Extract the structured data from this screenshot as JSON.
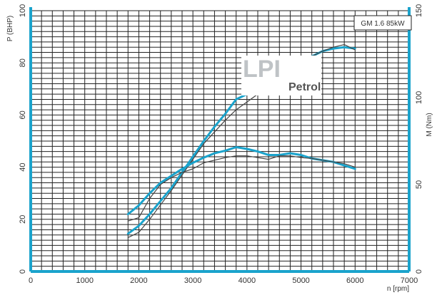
{
  "chart_data": {
    "type": "line",
    "label_box": "GM 1.6 85kW",
    "logo": {
      "mark": "LPI",
      "subtitle": "Petrol"
    },
    "xlabel": "n [rpm]",
    "ylabel_left": "P (BHP)",
    "ylabel_right": "M (Nm)",
    "xlim": [
      0,
      7000
    ],
    "ylim_left": [
      0,
      100
    ],
    "ylim_right": [
      0,
      150
    ],
    "x_ticks": [
      "0",
      "1000",
      "2000",
      "3000",
      "4000",
      "5000",
      "6000",
      "7000"
    ],
    "y_left_ticks": [
      "0",
      "20",
      "40",
      "60",
      "80",
      "100"
    ],
    "y_right_ticks": [
      "0",
      "50",
      "100",
      "150"
    ],
    "grid": true,
    "colors": {
      "grid": "#222222",
      "lpi": "#1aa3cc",
      "petrol": "#444444",
      "axis": "#1aa3cc"
    },
    "series": [
      {
        "name": "LPI",
        "axis": "left",
        "color": "#1aa3cc",
        "x": [
          1800,
          2000,
          2200,
          2400,
          2600,
          2800,
          3000,
          3200,
          3400,
          3600,
          3800,
          4000,
          4200,
          4400,
          4600,
          4800,
          5000,
          5200,
          5400,
          5600,
          5800,
          6000
        ],
        "y": [
          14.5,
          17.5,
          22,
          27,
          32,
          38,
          44,
          50,
          55.5,
          60.5,
          66,
          68,
          70.5,
          72.5,
          77,
          79.5,
          81,
          82.5,
          84.5,
          85.5,
          86,
          85.5
        ]
      },
      {
        "name": "Petrol",
        "axis": "left",
        "color": "#444444",
        "x": [
          1800,
          2000,
          2200,
          2400,
          2600,
          2800,
          3000,
          3200,
          3400,
          3600,
          3800,
          4000,
          4200,
          4400,
          4600,
          4800,
          5000,
          5200,
          5400,
          5600,
          5800,
          6000
        ],
        "y": [
          13,
          15,
          20,
          25.5,
          31,
          37,
          43,
          49,
          53.5,
          58,
          62,
          65,
          68,
          73,
          76.5,
          79,
          80.5,
          82.5,
          84.5,
          86,
          87,
          85
        ]
      },
      {
        "name": "LPI",
        "axis": "right",
        "color": "#1aa3cc",
        "x": [
          1800,
          2000,
          2200,
          2400,
          2600,
          2800,
          3000,
          3200,
          3400,
          3600,
          3800,
          4000,
          4200,
          4400,
          4600,
          4800,
          5000,
          5200,
          5400,
          5600,
          5800,
          6000
        ],
        "y": [
          33,
          38,
          45,
          51,
          55,
          59,
          62.5,
          65.5,
          68,
          69.5,
          71.5,
          70.5,
          69,
          67,
          67,
          68,
          67,
          65,
          64,
          63,
          61,
          59
        ]
      },
      {
        "name": "Petrol",
        "axis": "right",
        "color": "#444444",
        "x": [
          1800,
          2000,
          2200,
          2400,
          2600,
          2800,
          3000,
          3200,
          3400,
          3600,
          3800,
          4000,
          4200,
          4400,
          4600,
          4800,
          5000,
          5200,
          5400,
          5600,
          5800,
          6000
        ],
        "y": [
          29,
          31,
          42,
          50,
          54,
          57,
          59,
          62.5,
          64,
          65.5,
          66.5,
          66.5,
          65.5,
          64.5,
          66.5,
          66.5,
          65.5,
          65,
          64,
          63,
          62,
          60
        ]
      }
    ]
  }
}
